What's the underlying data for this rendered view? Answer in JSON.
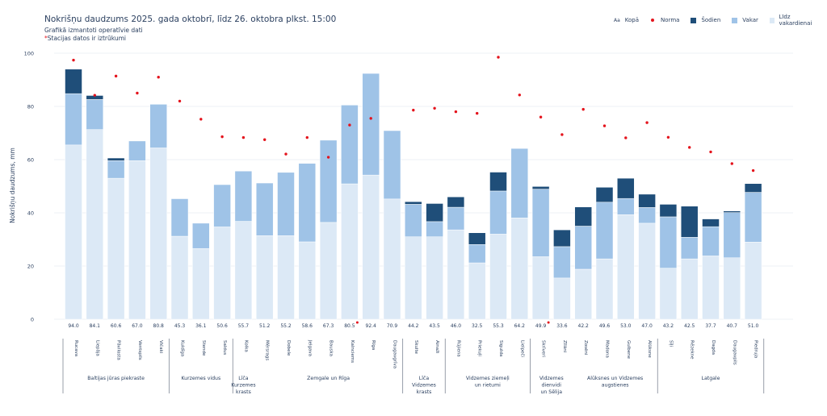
{
  "header": {
    "title": "Nokrišņu daudzums 2025. gada oktobrī, līdz 26. oktobra plkst. 15:00",
    "subtitle": "Grafikā izmantoti operatīvie dati",
    "note_marker": "*",
    "note": "Stacijas datos ir iztrūkumi"
  },
  "legend": {
    "items": [
      {
        "label": "Kopā",
        "symbol": "Aa"
      },
      {
        "label": "Norma",
        "symbol": "dot",
        "color": "#e4131c"
      },
      {
        "label": "Šodien",
        "symbol": "square",
        "color": "#1f4e79"
      },
      {
        "label": "Vakar",
        "symbol": "square",
        "color": "#9fc3e7"
      },
      {
        "label": "Līdz vakardienai",
        "symbol": "square",
        "color": "#dce9f6"
      }
    ]
  },
  "chart_data": {
    "type": "bar",
    "stacked": true,
    "title": "Nokrišņu daudzums 2025. gada oktobrī, līdz 26. oktobra plkst. 15:00",
    "xlabel": "",
    "ylabel": "Nokrišņu daudzums, mm",
    "ylim": [
      0,
      100
    ],
    "yticks": [
      0,
      20,
      40,
      60,
      80,
      100
    ],
    "grid": true,
    "legend_position": "top-right",
    "colors": {
      "lidz_vakardienai": "#dce9f6",
      "vakar": "#9fc3e7",
      "sodien": "#1f4e79",
      "norma": "#e4131c"
    },
    "categories": [
      "Rucava",
      "Liepāja",
      "Pāvilosta",
      "Ventspils",
      "Vičaki",
      "Kuldīga",
      "Stende",
      "Saldus",
      "Kolka",
      "Mērsrags",
      "Dobele",
      "Jelgava",
      "Bauska",
      "Kalnciems",
      "Rīga",
      "Daugavgrīva",
      "Skulte",
      "Ainaži",
      "Rūjiena",
      "Priekuļi",
      "Sigulda",
      "Lielpeči",
      "Skrīveri",
      "Zīlāni",
      "Zosēni",
      "Madona",
      "Gulbene",
      "Alūksne",
      "Sīļi",
      "Rēzekne",
      "Dagda",
      "Daugavpils",
      "Piedruja"
    ],
    "totals_labels": [
      "94.0",
      "84.1",
      "60.6",
      "67.0",
      "80.8",
      "45.3",
      "36.1",
      "50.6",
      "55.7",
      "51.2",
      "55.2",
      "58.6",
      "67.3",
      "80.5",
      "92.4",
      "70.9",
      "44.2",
      "43.5",
      "46.0",
      "32.5",
      "55.3",
      "64.2",
      "49.9",
      "33.6",
      "42.2",
      "49.6",
      "53.0",
      "47.0",
      "43.2",
      "42.5",
      "37.7",
      "40.7",
      "51.0"
    ],
    "missing_data_flags": [
      false,
      false,
      false,
      false,
      false,
      false,
      false,
      false,
      false,
      false,
      false,
      false,
      false,
      true,
      false,
      false,
      false,
      false,
      false,
      false,
      false,
      false,
      true,
      false,
      false,
      false,
      false,
      false,
      false,
      false,
      false,
      false,
      false
    ],
    "series": [
      {
        "name": "Līdz vakardienai",
        "values": [
          65.5,
          71.3,
          53.0,
          59.6,
          64.4,
          31.2,
          26.6,
          34.7,
          36.8,
          31.4,
          31.4,
          29.1,
          36.4,
          50.9,
          54.2,
          45.2,
          31.0,
          31.0,
          33.6,
          21.2,
          32.0,
          38.1,
          23.5,
          15.5,
          18.8,
          22.7,
          39.3,
          36.1,
          19.2,
          22.7,
          23.8,
          23.1,
          29.0
        ]
      },
      {
        "name": "Vakar",
        "values": [
          19.3,
          11.3,
          6.6,
          7.4,
          16.4,
          14.1,
          9.5,
          15.9,
          18.9,
          19.8,
          23.8,
          29.5,
          30.9,
          29.6,
          38.2,
          25.7,
          12.2,
          5.7,
          8.5,
          6.9,
          16.2,
          26.1,
          25.4,
          11.8,
          16.2,
          21.3,
          6.1,
          5.9,
          19.3,
          8.1,
          11.0,
          17.0,
          18.7
        ]
      },
      {
        "name": "Šodien",
        "values": [
          9.2,
          1.5,
          1.0,
          0.0,
          0.0,
          0.0,
          0.0,
          0.0,
          0.0,
          0.0,
          0.0,
          0.0,
          0.0,
          0.0,
          0.0,
          0.0,
          1.0,
          6.8,
          3.9,
          4.4,
          7.1,
          0.0,
          1.0,
          6.3,
          7.2,
          5.6,
          7.6,
          5.0,
          4.7,
          11.7,
          2.9,
          0.6,
          3.3
        ]
      },
      {
        "name": "Norma",
        "type": "scatter",
        "values": [
          97.4,
          84.2,
          91.4,
          85.0,
          91.0,
          82.0,
          75.2,
          68.6,
          68.3,
          67.5,
          62.1,
          68.3,
          60.9,
          73.0,
          75.5,
          null,
          78.6,
          79.3,
          78.0,
          77.4,
          98.5,
          84.3,
          76.0,
          69.4,
          78.9,
          72.7,
          68.2,
          73.9,
          68.4,
          64.6,
          62.9,
          58.5,
          55.9
        ]
      }
    ],
    "groups": [
      {
        "label": [
          "Baltijas jūras piekraste"
        ],
        "from": 0,
        "to": 4
      },
      {
        "label": [
          "Kurzemes vidus"
        ],
        "from": 5,
        "to": 7
      },
      {
        "label": [
          "Līča",
          "Kurzemes",
          "krasts"
        ],
        "from": 8,
        "to": 8
      },
      {
        "label": [
          "Zemgale un Rīga"
        ],
        "from": 9,
        "to": 15
      },
      {
        "label": [
          "Līča",
          "Vidzemes",
          "krasts"
        ],
        "from": 16,
        "to": 17
      },
      {
        "label": [
          "Vidzemes ziemeļi",
          "un rietumi"
        ],
        "from": 18,
        "to": 21
      },
      {
        "label": [
          "Vidzemes",
          "dienvidi",
          "un Sēlija"
        ],
        "from": 22,
        "to": 23
      },
      {
        "label": [
          "Alūksnes un Vidzemes",
          "augstienes"
        ],
        "from": 24,
        "to": 27
      },
      {
        "label": [
          "Latgale"
        ],
        "from": 28,
        "to": 32
      }
    ],
    "group_dividers_after": [
      4,
      7,
      15,
      17,
      21,
      27,
      32
    ]
  }
}
